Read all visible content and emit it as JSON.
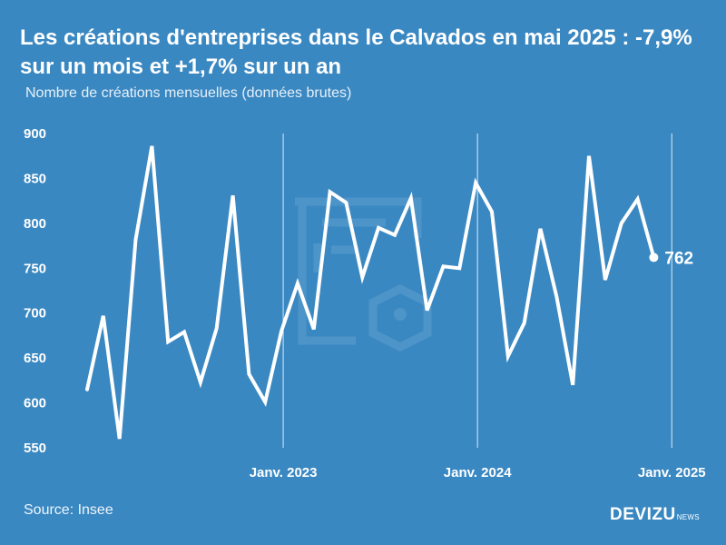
{
  "header": {
    "title": "Les créations d'entreprises dans le Calvados en mai 2025 : -7,9% sur un mois et +1,7% sur un an",
    "subtitle": "Nombre de créations mensuelles (données brutes)"
  },
  "footer": {
    "source": "Source: Insee",
    "brand": "DEVIZU",
    "brand_suffix": "NEWS"
  },
  "colors": {
    "background": "#3a88c2",
    "line": "#ffffff",
    "watermark": "#5a9ccd"
  },
  "chart_data": {
    "type": "line",
    "yticks": [
      550,
      600,
      650,
      700,
      750,
      800,
      850,
      900
    ],
    "ylim": [
      550,
      900
    ],
    "x_tick_labels": [
      {
        "index": 12,
        "label": "Janv. 2023"
      },
      {
        "index": 24,
        "label": "Janv. 2024"
      },
      {
        "index": 36,
        "label": "Janv. 2025"
      }
    ],
    "grid": "vertical lines at x ticks",
    "values": [
      615,
      697,
      560,
      782,
      886,
      668,
      679,
      623,
      683,
      831,
      632,
      601,
      680,
      733,
      682,
      835,
      823,
      740,
      795,
      787,
      828,
      703,
      752,
      750,
      845,
      813,
      652,
      689,
      794,
      718,
      620,
      875,
      737,
      800,
      827,
      762
    ],
    "last_label": "762"
  }
}
